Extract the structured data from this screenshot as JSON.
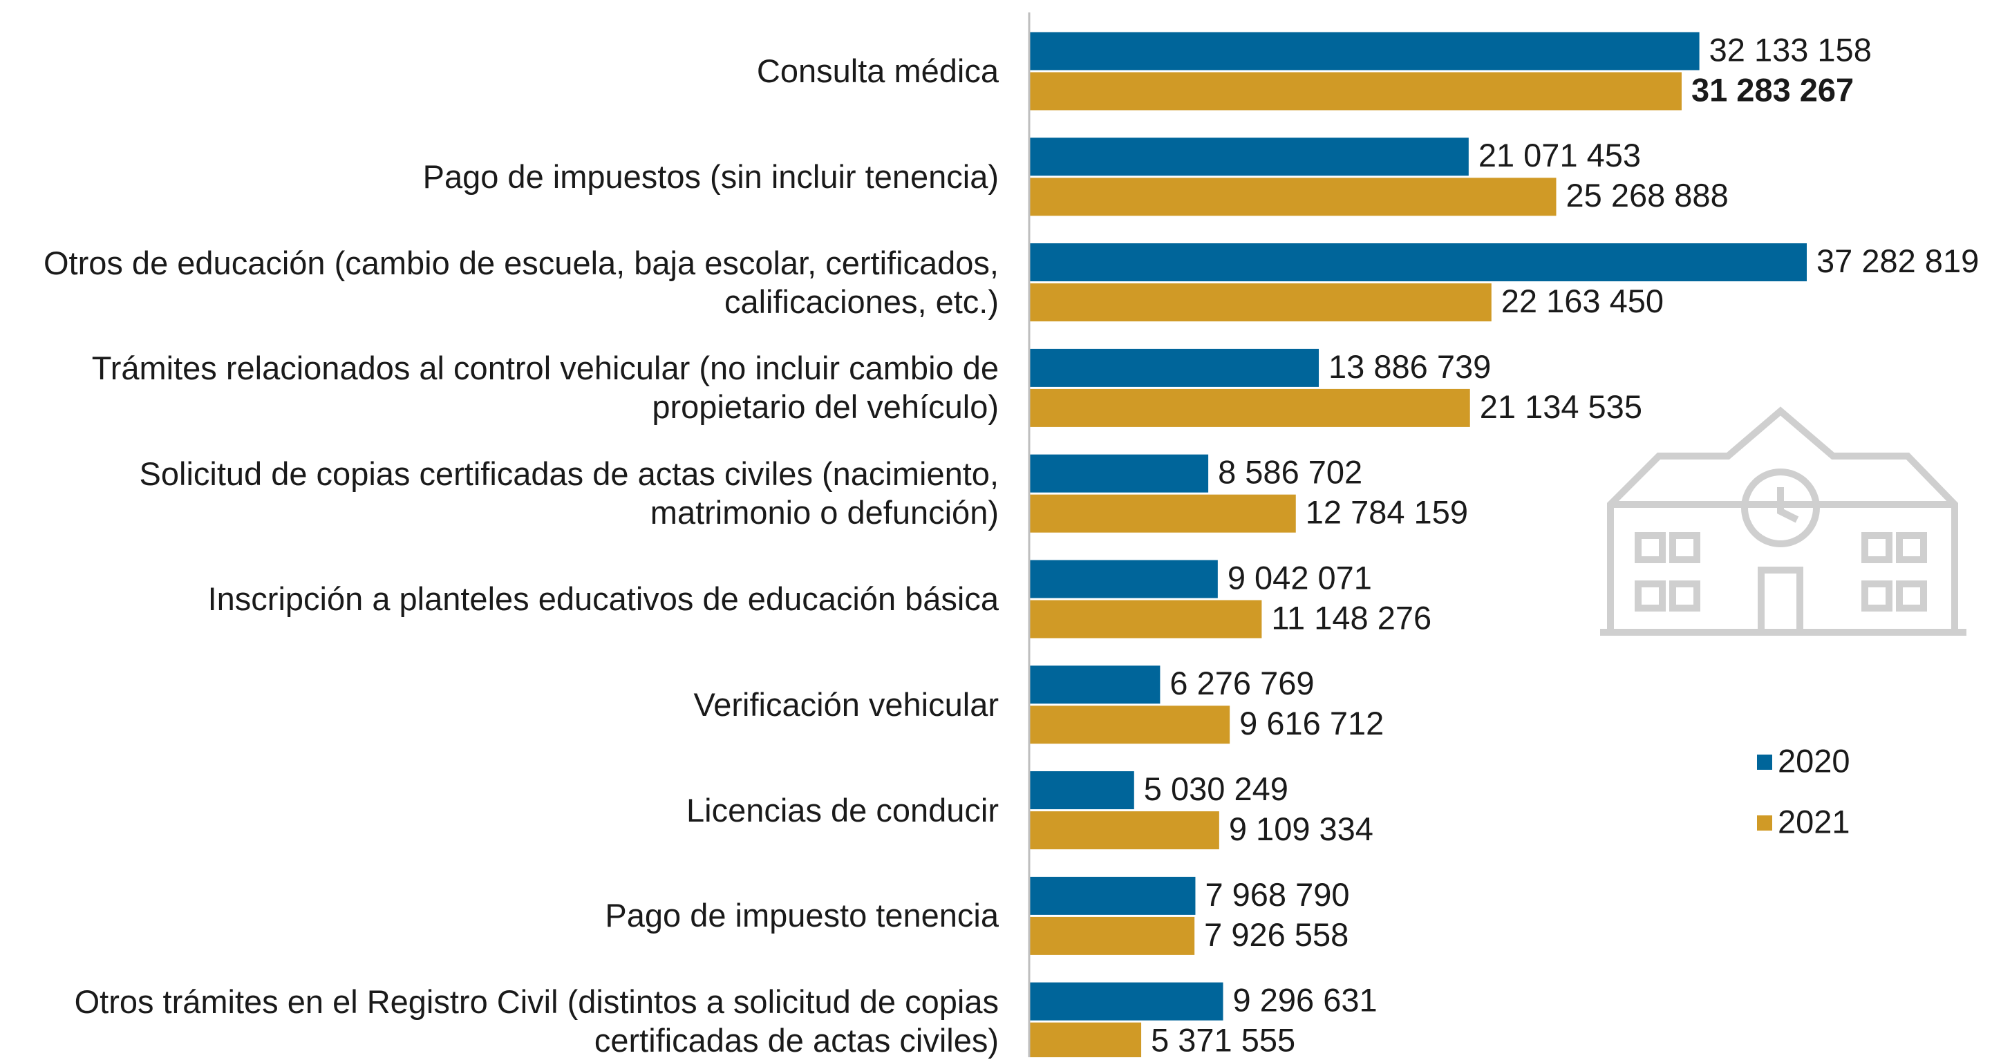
{
  "chart_data": {
    "type": "hbar",
    "categories": [
      "Consulta médica",
      "Pago de impuestos (sin incluir tenencia)",
      "Otros de educación (cambio de escuela, baja escolar, certificados, calificaciones, etc.)",
      "Trámites relacionados al control vehicular (no incluir cambio de propietario del vehículo)",
      "Solicitud de copias certificadas de actas civiles (nacimiento, matrimonio o defunción)",
      "Inscripción a planteles educativos de educación básica",
      "Verificación vehicular",
      "Licencias de conducir",
      "Pago de impuesto tenencia",
      "Otros trámites en el Registro Civil (distintos a solicitud de copias certificadas de actas civiles)"
    ],
    "series": [
      {
        "name": "2020",
        "color": "#00659a",
        "values": [
          32133158,
          21071453,
          37282819,
          13886739,
          8586702,
          9042071,
          6276769,
          5030249,
          7968790,
          9296631
        ],
        "value_labels": [
          "32 133 158",
          "21 071 453",
          "37 282 819",
          "13 886 739",
          "8 586 702",
          "9 042 071",
          "6 276 769",
          "5 030 249",
          "7 968 790",
          "9 296 631"
        ]
      },
      {
        "name": "2021",
        "color": "#d09a26",
        "values": [
          31283267,
          25268888,
          22163450,
          21134535,
          12784159,
          11148276,
          9616712,
          9109334,
          7926558,
          5371555
        ],
        "value_labels": [
          "31 283 267",
          "25 268 888",
          "22 163 450",
          "21 134 535",
          "12 784 159",
          "11 148 276",
          "9 616 712",
          "9 109 334",
          "7 926 558",
          "5 371 555"
        ]
      }
    ],
    "xlim": [
      0,
      40000000
    ],
    "legend": "right"
  }
}
